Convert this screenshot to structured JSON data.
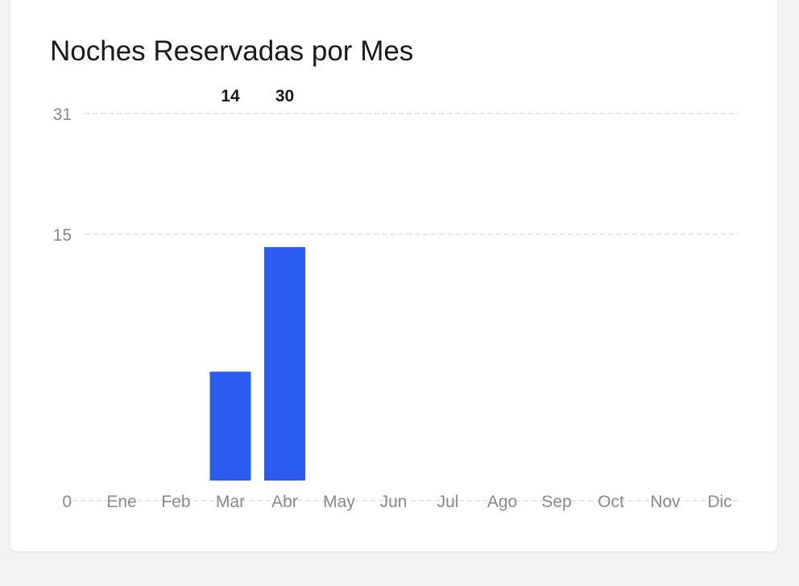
{
  "chart_data": {
    "type": "bar",
    "title": "Noches Reservadas por Mes",
    "categories": [
      "Ene",
      "Feb",
      "Mar",
      "Abr",
      "May",
      "Jun",
      "Jul",
      "Ago",
      "Sep",
      "Oct",
      "Nov",
      "Dic"
    ],
    "values": [
      0,
      0,
      14,
      30,
      0,
      0,
      0,
      0,
      0,
      0,
      0,
      0
    ],
    "bar_value_labels": [
      "",
      "",
      "14",
      "30",
      "",
      "",
      "",
      "",
      "",
      "",
      "",
      ""
    ],
    "yticks": [
      0,
      15,
      31
    ],
    "ylim": [
      0,
      31
    ],
    "grid": true,
    "bar_color": "#2b5cf0",
    "grid_color": "#e0e0e0"
  }
}
